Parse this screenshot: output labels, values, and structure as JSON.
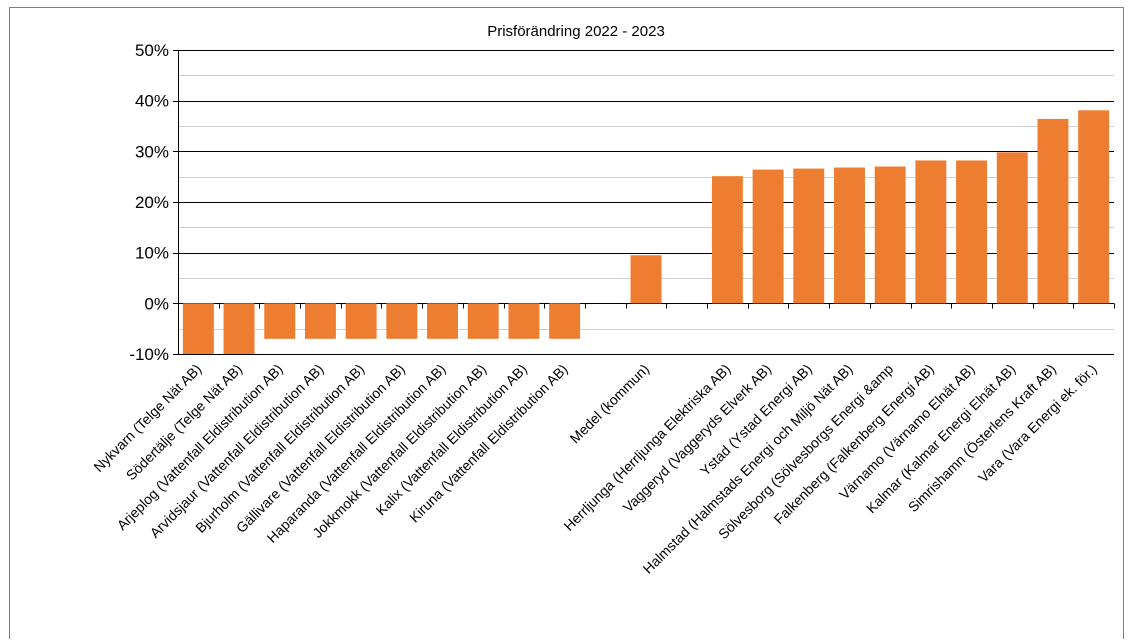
{
  "chart_data": {
    "type": "bar",
    "title": "Prisförändring 2022 - 2023",
    "xlabel": "",
    "ylabel": "",
    "ylim": [
      -10,
      50
    ],
    "yticks": [
      -10,
      0,
      10,
      20,
      30,
      40,
      50
    ],
    "ytick_labels": [
      "-10%",
      "0%",
      "10%",
      "20%",
      "30%",
      "40%",
      "50%"
    ],
    "grid": true,
    "bar_color": "#ed7d31",
    "categories": [
      "Nykvarn (Telge Nät AB)",
      "Södertälje (Telge Nät AB)",
      "Arjeplog (Vattenfall Eldistribution AB)",
      "Arvidsjaur (Vattenfall Eldistribution AB)",
      "Bjurholm (Vattenfall Eldistribution AB)",
      "Gällivare (Vattenfall Eldistribution AB)",
      "Haparanda (Vattenfall Eldistribution AB)",
      "Jokkmokk (Vattenfall Eldistribution AB)",
      "Kalix (Vattenfall Eldistribution AB)",
      "Kiruna (Vattenfall Eldistribution AB)",
      "",
      "Medel (kommun)",
      "",
      "Herrljunga (Herrljunga Elektriska AB)",
      "Vaggeryd (Vaggeryds Elverk AB)",
      "Ystad (Ystad Energi AB)",
      "Halmstad (Halmstads Energi och Miljö Nät AB)",
      "Sölvesborg (Sölvesborgs Energi &amp",
      "Falkenberg (Falkenberg Energi AB)",
      "Värnamo (Värnamo Elnät AB)",
      "Kalmar (Kalmar Energi Elnät AB)",
      "Simrishamn (Österlens Kraft AB)",
      "Vara (Vara Energi ek. för.)"
    ],
    "values": [
      -10,
      -10,
      -7,
      -7,
      -7,
      -7,
      -7,
      -7,
      -7,
      -7,
      null,
      9.5,
      null,
      25.1,
      26.4,
      26.6,
      26.8,
      27.0,
      28.2,
      28.2,
      29.8,
      36.4,
      38.1
    ]
  }
}
